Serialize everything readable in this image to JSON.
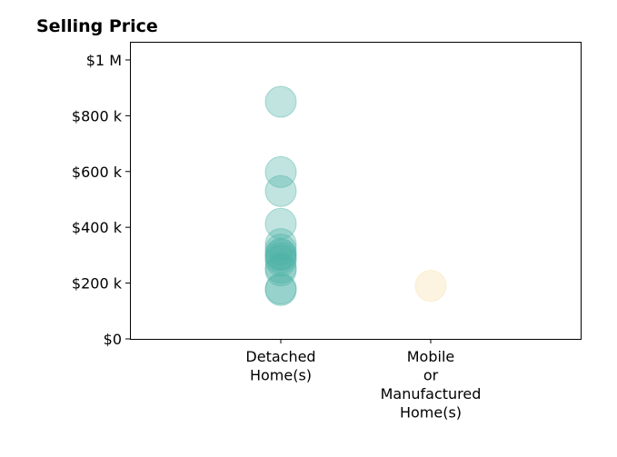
{
  "chart_data": {
    "type": "scatter",
    "title": "Selling Price",
    "xlabel": "",
    "ylabel": "",
    "categories": [
      [
        "Detached",
        "Home(s)"
      ],
      [
        "Mobile",
        "or",
        "Manufactured",
        "Home(s)"
      ]
    ],
    "y_ticks": [
      {
        "value": 0,
        "label": "$0"
      },
      {
        "value": 200000,
        "label": "$200 k"
      },
      {
        "value": 400000,
        "label": "$400 k"
      },
      {
        "value": 600000,
        "label": "$600 k"
      },
      {
        "value": 800000,
        "label": "$800 k"
      },
      {
        "value": 1000000,
        "label": "$1 M"
      }
    ],
    "ylim": [
      0,
      1065000
    ],
    "grid": false,
    "series": [
      {
        "category": 0,
        "color": "#4db3a6",
        "values": [
          850000,
          598000,
          530000,
          413000,
          340000,
          320000,
          305000,
          300000,
          290000,
          280000,
          255000,
          245000,
          180000,
          175000
        ]
      },
      {
        "category": 1,
        "color": "#f5dfa6",
        "values": [
          190000
        ]
      }
    ]
  }
}
